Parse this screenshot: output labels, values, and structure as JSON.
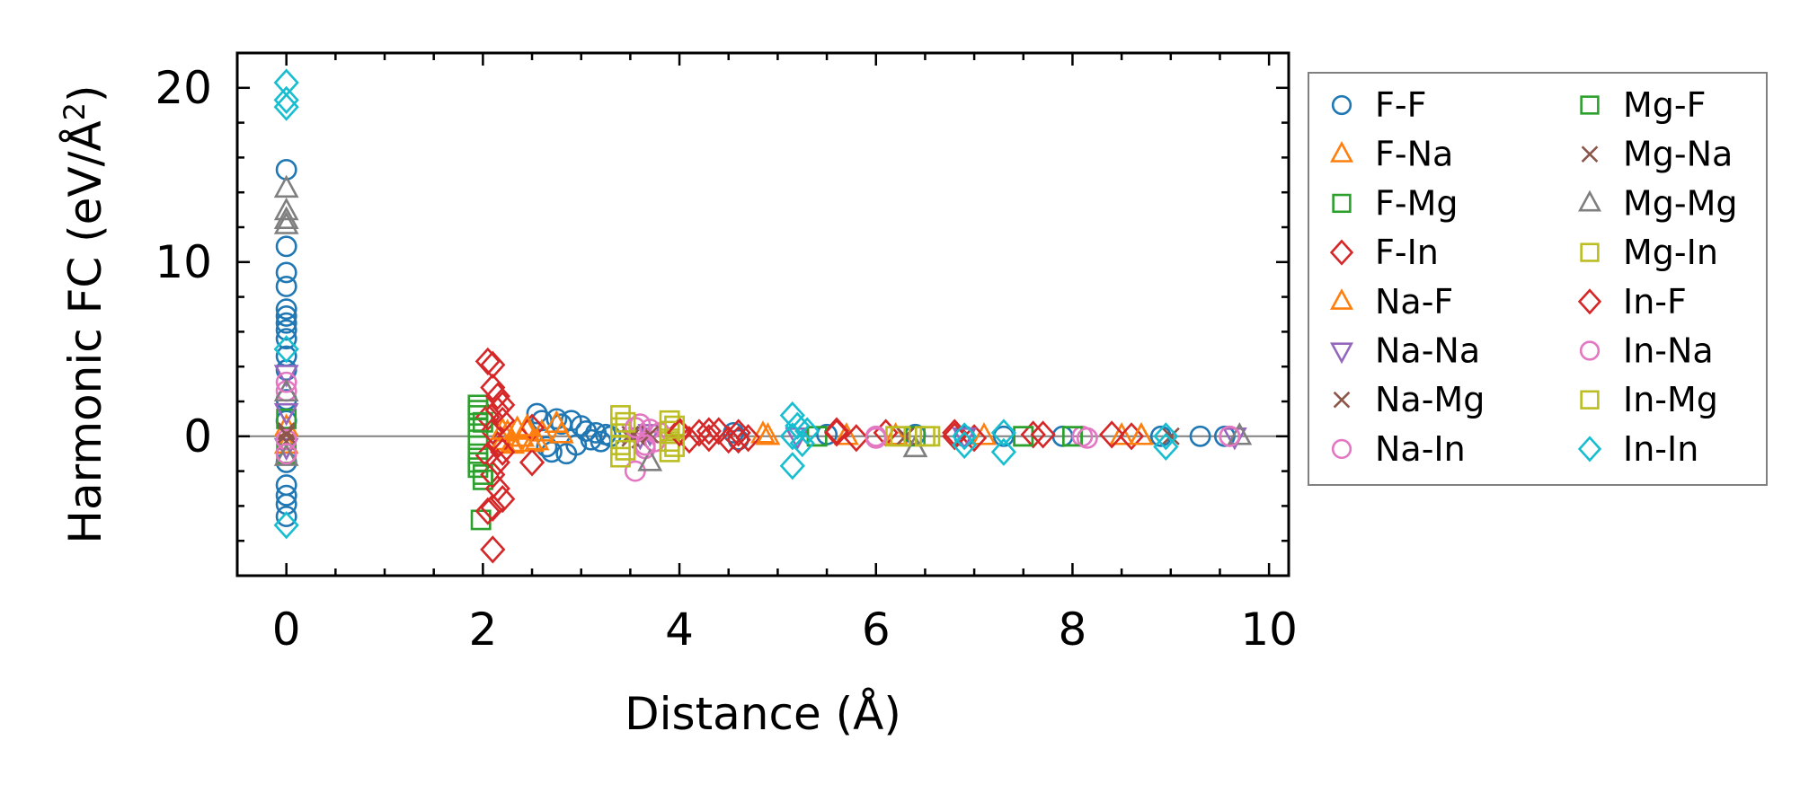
{
  "chart_data": {
    "type": "scatter",
    "xlabel": "Distance (Å)",
    "ylabel": "Harmonic FC (eV/Å²)",
    "ylabel_main": "Harmonic FC (eV/Å",
    "ylabel_sup": "2",
    "ylabel_close": ")",
    "xlim": [
      -0.5,
      10.2
    ],
    "ylim": [
      -8,
      22
    ],
    "xticks": [
      0,
      2,
      4,
      6,
      8,
      10
    ],
    "xtick_labels": [
      "0",
      "2",
      "4",
      "6",
      "8",
      "10"
    ],
    "yticks": [
      0,
      10,
      20
    ],
    "ytick_labels": [
      "0",
      "10",
      "20"
    ],
    "grid": false,
    "zero_line": true,
    "legend_position": "outside-right",
    "legend_columns": 2,
    "series": [
      {
        "name": "F-F",
        "marker": "circle",
        "color": "#1f77b4",
        "points": [
          [
            0,
            15.3
          ],
          [
            0,
            10.9
          ],
          [
            0,
            9.4
          ],
          [
            0,
            8.6
          ],
          [
            0,
            7.3
          ],
          [
            0,
            6.9
          ],
          [
            0,
            6.5
          ],
          [
            0,
            6.1
          ],
          [
            0,
            5.6
          ],
          [
            0,
            4.6
          ],
          [
            0,
            3.8
          ],
          [
            0,
            2.1
          ],
          [
            0,
            0.9
          ],
          [
            0,
            -1.5
          ],
          [
            0,
            -2.8
          ],
          [
            0,
            -3.4
          ],
          [
            0,
            -3.9
          ],
          [
            0,
            -4.6
          ],
          [
            2.55,
            1.3
          ],
          [
            2.6,
            0.9
          ],
          [
            2.65,
            -0.6
          ],
          [
            2.7,
            -0.9
          ],
          [
            2.75,
            1.0
          ],
          [
            2.8,
            0.7
          ],
          [
            2.85,
            -1.0
          ],
          [
            2.9,
            0.9
          ],
          [
            2.95,
            -0.5
          ],
          [
            3.0,
            0.6
          ],
          [
            3.05,
            0.3
          ],
          [
            3.1,
            -0.2
          ],
          [
            3.15,
            0.2
          ],
          [
            3.2,
            -0.3
          ],
          [
            3.25,
            0.1
          ],
          [
            3.3,
            0.0
          ],
          [
            4.55,
            0.2
          ],
          [
            4.6,
            -0.2
          ],
          [
            5.5,
            0.1
          ],
          [
            6.4,
            0.1
          ],
          [
            6.9,
            0.0
          ],
          [
            7.3,
            0.0
          ],
          [
            7.9,
            0.0
          ],
          [
            8.9,
            0.0
          ],
          [
            9.3,
            0.0
          ],
          [
            9.55,
            0.0
          ]
        ]
      },
      {
        "name": "F-Na",
        "marker": "triangle-up",
        "color": "#ff7f0e",
        "points": [
          [
            0,
            0.5
          ],
          [
            0,
            -0.5
          ],
          [
            2.2,
            -0.3
          ],
          [
            2.25,
            0.2
          ],
          [
            2.3,
            -0.5
          ],
          [
            2.35,
            0.4
          ],
          [
            2.4,
            -0.1
          ],
          [
            2.45,
            0.3
          ],
          [
            2.5,
            -0.4
          ],
          [
            2.6,
            0.2
          ],
          [
            2.75,
            0.7
          ],
          [
            4.85,
            0.1
          ],
          [
            5.7,
            0.0
          ],
          [
            7.1,
            0.0
          ],
          [
            8.5,
            0.0
          ],
          [
            8.7,
            0.0
          ]
        ]
      },
      {
        "name": "F-Mg",
        "marker": "square",
        "color": "#2ca02c",
        "points": [
          [
            0,
            1.0
          ],
          [
            0,
            -1.0
          ],
          [
            1.95,
            1.8
          ],
          [
            1.95,
            1.2
          ],
          [
            1.95,
            0.5
          ],
          [
            1.95,
            -0.2
          ],
          [
            1.95,
            -1.0
          ],
          [
            1.95,
            -1.8
          ],
          [
            1.98,
            -4.8
          ],
          [
            2.0,
            -2.5
          ],
          [
            5.4,
            0.0
          ],
          [
            6.4,
            0.0
          ],
          [
            7.5,
            0.0
          ],
          [
            8.0,
            0.0
          ]
        ]
      },
      {
        "name": "F-In",
        "marker": "diamond",
        "color": "#d62728",
        "points": [
          [
            2.05,
            4.3
          ],
          [
            2.1,
            2.8
          ],
          [
            2.15,
            2.3
          ],
          [
            2.2,
            1.8
          ],
          [
            2.05,
            1.1
          ],
          [
            2.1,
            0.3
          ],
          [
            2.15,
            -0.5
          ],
          [
            2.05,
            -1.1
          ],
          [
            2.1,
            -2.2
          ],
          [
            2.15,
            -3.0
          ],
          [
            2.2,
            -3.6
          ],
          [
            2.05,
            -4.3
          ],
          [
            2.1,
            -6.5
          ],
          [
            2.5,
            0.5
          ],
          [
            2.5,
            -1.5
          ],
          [
            4.0,
            0.3
          ],
          [
            4.1,
            -0.2
          ],
          [
            4.2,
            0.2
          ],
          [
            4.3,
            -0.1
          ],
          [
            4.4,
            0.3
          ],
          [
            4.5,
            -0.2
          ],
          [
            4.6,
            0.2
          ],
          [
            4.7,
            -0.1
          ],
          [
            5.6,
            0.3
          ],
          [
            5.8,
            -0.1
          ],
          [
            6.1,
            0.2
          ],
          [
            6.8,
            0.2
          ],
          [
            7.0,
            -0.1
          ],
          [
            7.6,
            0.1
          ],
          [
            8.4,
            0.1
          ],
          [
            8.6,
            0.0
          ]
        ]
      },
      {
        "name": "Na-F",
        "marker": "triangle-up",
        "color": "#ff7f0e",
        "points": [
          [
            2.2,
            0.3
          ],
          [
            2.3,
            -0.4
          ],
          [
            2.45,
            0.5
          ],
          [
            2.55,
            -0.3
          ],
          [
            2.8,
            0.1
          ],
          [
            4.9,
            0.0
          ],
          [
            6.2,
            0.0
          ],
          [
            8.7,
            0.0
          ]
        ]
      },
      {
        "name": "Na-Na",
        "marker": "triangle-down",
        "color": "#9467bd",
        "points": [
          [
            0,
            1.4
          ],
          [
            0,
            3.6
          ],
          [
            0,
            -0.6
          ],
          [
            3.6,
            0.0
          ],
          [
            3.7,
            0.2
          ],
          [
            5.2,
            0.0
          ],
          [
            6.9,
            0.0
          ],
          [
            9.65,
            0.0
          ]
        ]
      },
      {
        "name": "Na-Mg",
        "marker": "x",
        "color": "#8c564b",
        "points": [
          [
            0,
            0.3
          ],
          [
            0,
            -0.3
          ],
          [
            3.5,
            0.1
          ],
          [
            3.6,
            -0.2
          ],
          [
            6.3,
            0.0
          ],
          [
            9.0,
            0.0
          ]
        ]
      },
      {
        "name": "Na-In",
        "marker": "circle",
        "color": "#e377c2",
        "points": [
          [
            0,
            2.6
          ],
          [
            0,
            -0.2
          ],
          [
            3.55,
            -2.0
          ],
          [
            3.6,
            0.7
          ],
          [
            3.65,
            -0.7
          ],
          [
            3.7,
            0.4
          ],
          [
            3.75,
            -0.3
          ],
          [
            3.8,
            0.2
          ],
          [
            6.0,
            0.0
          ],
          [
            8.1,
            0.0
          ],
          [
            9.6,
            0.0
          ]
        ]
      },
      {
        "name": "Mg-F",
        "marker": "square",
        "color": "#2ca02c",
        "points": [
          [
            1.95,
            1.5
          ],
          [
            1.95,
            -1.5
          ],
          [
            2.0,
            -2.2
          ],
          [
            2.0,
            0.8
          ],
          [
            5.4,
            0.0
          ],
          [
            7.5,
            0.0
          ],
          [
            8.0,
            0.0
          ]
        ]
      },
      {
        "name": "Mg-Na",
        "marker": "x",
        "color": "#8c564b",
        "points": [
          [
            0,
            0.1
          ],
          [
            3.5,
            -0.1
          ],
          [
            3.7,
            0.1
          ],
          [
            6.3,
            0.0
          ]
        ]
      },
      {
        "name": "Mg-Mg",
        "marker": "triangle-up",
        "color": "#7f7f7f",
        "points": [
          [
            0,
            14.2
          ],
          [
            0,
            12.9
          ],
          [
            0,
            12.4
          ],
          [
            0,
            12.1
          ],
          [
            0,
            2.5
          ],
          [
            0,
            -1.2
          ],
          [
            3.7,
            -1.5
          ],
          [
            6.4,
            -0.7
          ],
          [
            9.7,
            0.0
          ]
        ]
      },
      {
        "name": "Mg-In",
        "marker": "square",
        "color": "#bcbd22",
        "points": [
          [
            3.4,
            1.2
          ],
          [
            3.4,
            0.5
          ],
          [
            3.4,
            -0.5
          ],
          [
            3.4,
            -1.2
          ],
          [
            3.9,
            0.9
          ],
          [
            3.9,
            0.3
          ],
          [
            3.9,
            -0.3
          ],
          [
            3.9,
            -0.9
          ],
          [
            6.2,
            0.0
          ],
          [
            6.5,
            0.0
          ]
        ]
      },
      {
        "name": "In-F",
        "marker": "diamond",
        "color": "#d62728",
        "points": [
          [
            2.1,
            4.1
          ],
          [
            2.1,
            -4.1
          ],
          [
            2.15,
            1.5
          ],
          [
            2.15,
            -1.5
          ],
          [
            2.2,
            0.9
          ],
          [
            2.2,
            -0.9
          ],
          [
            4.0,
            0.2
          ],
          [
            4.3,
            0.3
          ],
          [
            4.6,
            -0.2
          ],
          [
            5.6,
            0.2
          ],
          [
            6.8,
            0.0
          ],
          [
            7.7,
            0.1
          ]
        ]
      },
      {
        "name": "In-Na",
        "marker": "circle",
        "color": "#e377c2",
        "points": [
          [
            0,
            3.1
          ],
          [
            0,
            -1.0
          ],
          [
            3.55,
            0.5
          ],
          [
            3.65,
            -0.5
          ],
          [
            6.0,
            -0.1
          ],
          [
            8.15,
            -0.1
          ],
          [
            9.6,
            0.0
          ]
        ]
      },
      {
        "name": "In-Mg",
        "marker": "square",
        "color": "#bcbd22",
        "points": [
          [
            3.45,
            0.8
          ],
          [
            3.45,
            -0.8
          ],
          [
            3.95,
            0.6
          ],
          [
            3.95,
            -0.6
          ],
          [
            6.25,
            0.0
          ],
          [
            6.55,
            0.0
          ]
        ]
      },
      {
        "name": "In-In",
        "marker": "diamond",
        "color": "#17becf",
        "points": [
          [
            0,
            20.3
          ],
          [
            0,
            19.3
          ],
          [
            0,
            18.9
          ],
          [
            0,
            5.0
          ],
          [
            0,
            -5.1
          ],
          [
            5.15,
            1.2
          ],
          [
            5.15,
            0.0
          ],
          [
            5.15,
            -1.7
          ],
          [
            5.2,
            0.6
          ],
          [
            5.25,
            -0.4
          ],
          [
            5.3,
            0.3
          ],
          [
            6.9,
            0.0
          ],
          [
            6.9,
            -0.5
          ],
          [
            7.3,
            0.2
          ],
          [
            7.3,
            -0.9
          ],
          [
            8.95,
            0.0
          ],
          [
            8.95,
            -0.6
          ]
        ]
      }
    ]
  }
}
